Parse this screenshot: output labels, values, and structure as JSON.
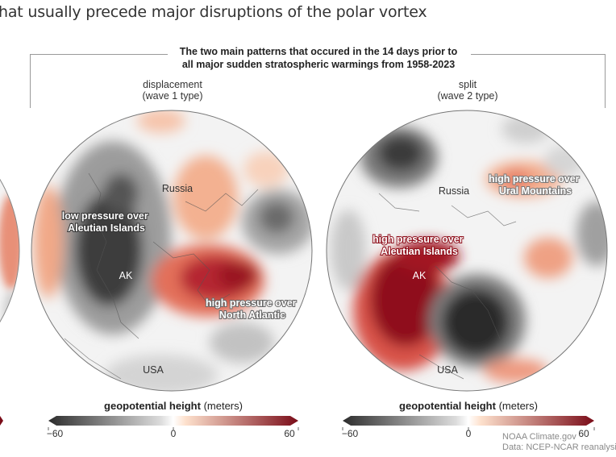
{
  "title": "hat usually precede major disruptions of the polar vortex",
  "subtitle": {
    "line1": "The two main patterns that occured in the 14 days prior to",
    "line2": "all major sudden stratospheric warmings from 1958-2023"
  },
  "panels": [
    {
      "label_line1": "displacement",
      "label_line2": "(wave 1 type)",
      "annotations": {
        "low": [
          "low pressure over",
          "Aleutian Islands"
        ],
        "high": [
          "high pressure over",
          "North Atlantic"
        ]
      },
      "places": {
        "russia": "Russia",
        "ak": "AK",
        "usa": "USA"
      }
    },
    {
      "label_line1": "split",
      "label_line2": "(wave 2 type)",
      "annotations": {
        "high_aleutian": [
          "high pressure over",
          "Aleutian Islands"
        ],
        "high_ural": [
          "high pressure over",
          "Ural Mountains"
        ]
      },
      "places": {
        "russia": "Russia",
        "ak": "AK",
        "usa": "USA"
      }
    }
  ],
  "colorbar": {
    "title_bold": "geopotential height",
    "title_unit": "(meters)",
    "min_label": "−60",
    "mid_label": "0",
    "max_label": "60",
    "colors": [
      "#2d2d2d",
      "#4a4a4a",
      "#6b6b6b",
      "#8c8c8c",
      "#adadad",
      "#c9c9c9",
      "#e0e0e0",
      "#ffffff",
      "#fde0cc",
      "#f7b99a",
      "#ee8f72",
      "#dd6150",
      "#c43a37",
      "#a01d26",
      "#7a0c18"
    ]
  },
  "credit": {
    "line1": "NOAA Climate.gov",
    "line2": "Data: NCEP-NCAR reanalysis"
  }
}
